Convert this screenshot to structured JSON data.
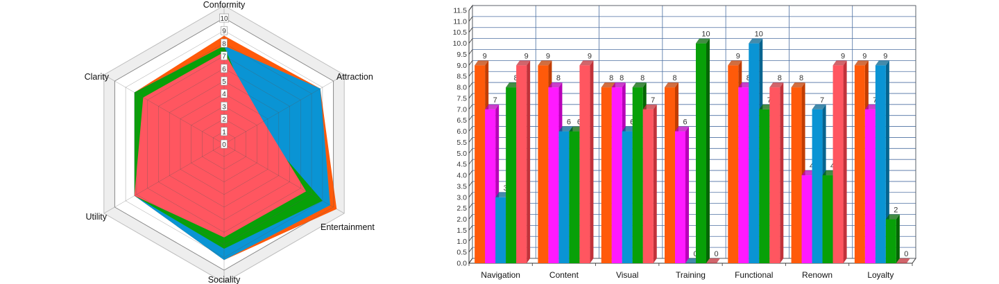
{
  "chart_data": [
    {
      "type": "radar",
      "axes": [
        "Conformity",
        "Attraction",
        "Entertainment",
        "Sociality",
        "Utility",
        "Clarity"
      ],
      "ticks": [
        "0",
        "1",
        "2",
        "3",
        "4",
        "5",
        "6",
        "7",
        "8",
        "9",
        "10"
      ],
      "rmax": 10,
      "grid": true,
      "series": [
        {
          "color": "#ff5a0a",
          "values": [
            8.6,
            8.8,
            10.3,
            9.2,
            8.2,
            8.2
          ]
        },
        {
          "color": "#ff1aff",
          "values": [
            7.8,
            6.3,
            9.5,
            9.0,
            8.2,
            8.2
          ]
        },
        {
          "color": "#0a94d4",
          "values": [
            7.8,
            8.8,
            9.7,
            9.2,
            8.2,
            8.2
          ]
        },
        {
          "color": "#08a008",
          "values": [
            7.8,
            3.0,
            9.0,
            8.3,
            8.2,
            8.2
          ]
        },
        {
          "color": "#ff5660",
          "values": [
            7.3,
            3.6,
            7.5,
            7.4,
            8.2,
            7.4
          ]
        }
      ]
    },
    {
      "type": "bar",
      "categories": [
        "Navigation",
        "Content",
        "Visual",
        "Training",
        "Functional",
        "Renown",
        "Loyalty"
      ],
      "ylim": [
        0,
        11.5
      ],
      "ytick_step": 0.5,
      "grid": true,
      "series": [
        {
          "color": "#ff5a0a",
          "side": "#c23d00",
          "values": [
            9,
            9,
            8,
            8,
            9,
            8,
            9
          ]
        },
        {
          "color": "#ff1aff",
          "side": "#b800b8",
          "values": [
            7,
            8,
            8,
            6,
            8,
            4,
            7
          ]
        },
        {
          "color": "#0a94d4",
          "side": "#06648f",
          "values": [
            3,
            6,
            6,
            0,
            10,
            7,
            9
          ]
        },
        {
          "color": "#08a008",
          "side": "#056605",
          "values": [
            8,
            6,
            8,
            10,
            7,
            4,
            2
          ]
        },
        {
          "color": "#ff5660",
          "side": "#c2323a",
          "values": [
            9,
            9,
            7,
            0,
            8,
            9,
            0
          ]
        }
      ]
    }
  ]
}
